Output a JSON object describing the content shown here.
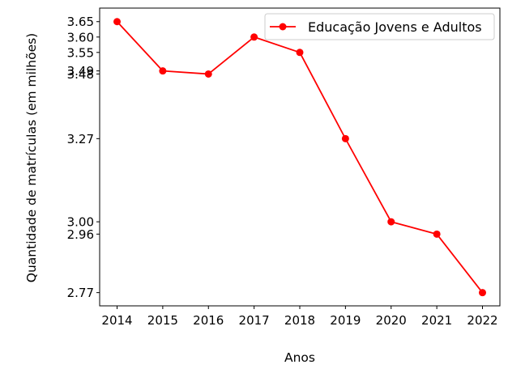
{
  "chart_data": {
    "type": "line",
    "title": "",
    "xlabel": "Anos",
    "ylabel": "Quantidade de matrículas (em milhões)",
    "x": [
      "2014",
      "2015",
      "2016",
      "2017",
      "2018",
      "2019",
      "2020",
      "2021",
      "2022"
    ],
    "series": [
      {
        "name": "Educação Jovens e Adultos",
        "color": "#ff0000",
        "marker": "circle",
        "values": [
          3.65,
          3.49,
          3.48,
          3.6,
          3.55,
          3.27,
          3.0,
          2.96,
          2.77
        ]
      }
    ],
    "yticks": [
      "3.65",
      "3.60",
      "3.55",
      "3.49",
      "3.48",
      "3.27",
      "3.00",
      "2.96",
      "2.77"
    ],
    "ylim": [
      2.727,
      3.694
    ],
    "grid": false,
    "legend": "top-right"
  }
}
